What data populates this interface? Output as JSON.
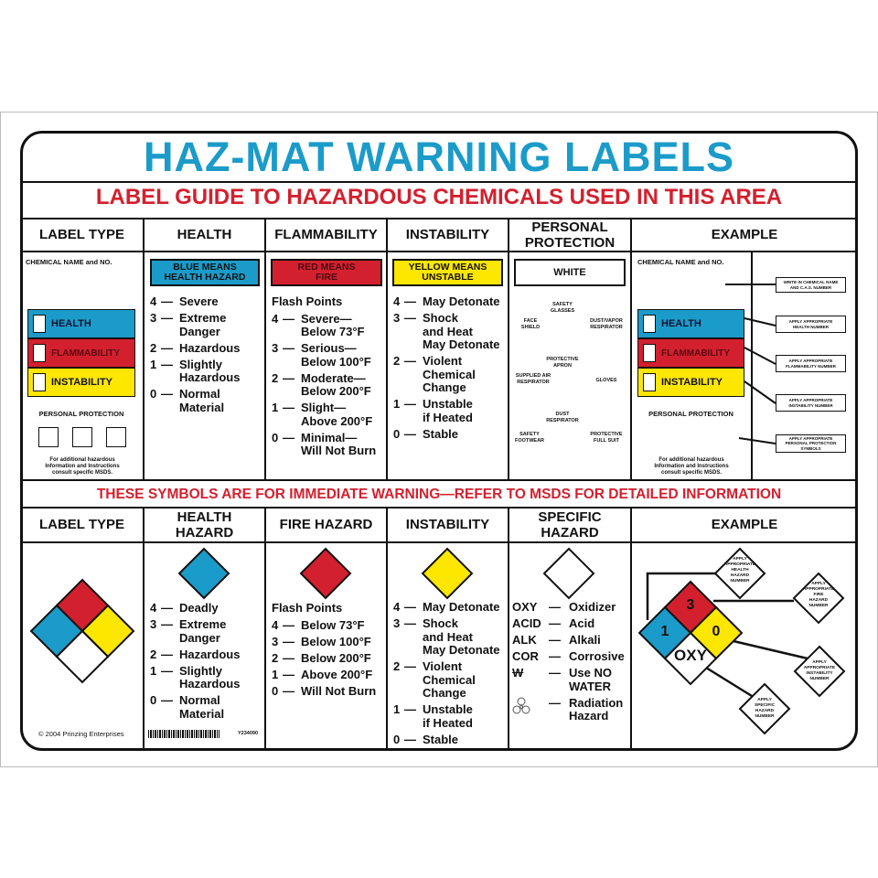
{
  "title": "HAZ-MAT WARNING LABELS",
  "subtitle": "LABEL GUIDE TO HAZARDOUS CHEMICALS USED IN THIS AREA",
  "warning": "THESE SYMBOLS ARE FOR IMMEDIATE WARNING—REFER TO MSDS FOR DETAILED INFORMATION",
  "colors": {
    "blue": "#1b9bc9",
    "red": "#d3202e",
    "yellow": "#fde600",
    "white": "#ffffff"
  },
  "top": {
    "headers": [
      "LABEL TYPE",
      "HEALTH",
      "FLAMMABILITY",
      "INSTABILITY",
      "PERSONAL\nPROTECTION",
      "EXAMPLE"
    ],
    "label_type": {
      "chemical_name": "CHEMICAL NAME and NO.",
      "bars": [
        "HEALTH",
        "FLAMMABILITY",
        "INSTABILITY"
      ],
      "personal_protection": "PERSONAL PROTECTION",
      "footnote": "For additional hazardous\nInformation and Instructions\nconsult specific MSDS."
    },
    "health": {
      "banner": "BLUE MEANS\nHEALTH HAZARD",
      "items": [
        [
          "4",
          "Severe"
        ],
        [
          "3",
          "Extreme\n   Danger"
        ],
        [
          "2",
          "Hazardous"
        ],
        [
          "1",
          "Slightly\n   Hazardous"
        ],
        [
          "0",
          "Normal\n   Material"
        ]
      ]
    },
    "flammability": {
      "banner": "RED MEANS\nFIRE",
      "heading": "Flash Points",
      "items": [
        [
          "4",
          "Severe—\nBelow 73°F"
        ],
        [
          "3",
          "Serious—\nBelow 100°F"
        ],
        [
          "2",
          "Moderate—\nBelow 200°F"
        ],
        [
          "1",
          "Slight—\nAbove 200°F"
        ],
        [
          "0",
          "Minimal—\nWill Not Burn"
        ]
      ]
    },
    "instability": {
      "banner": "YELLOW MEANS\nUNSTABLE",
      "items": [
        [
          "4",
          "May Detonate"
        ],
        [
          "3",
          "Shock\n   and Heat\nMay Detonate"
        ],
        [
          "2",
          "Violent\nChemical\nChange"
        ],
        [
          "1",
          "Unstable\n   if Heated"
        ],
        [
          "0",
          "Stable"
        ]
      ]
    },
    "personal_protection": {
      "banner": "WHITE",
      "items": [
        "SAFETY\nGLASSES",
        "FACE\nSHIELD",
        "DUST/VAPOR\nRESPIRATOR",
        "PROTECTIVE\nAPRON",
        "SUPPLIED AIR\nRESPIRATOR",
        "GLOVES",
        "DUST\nRESPIRATOR",
        "SAFETY\nFOOTWEAR",
        "PROTECTIVE\nFULL SUIT"
      ]
    },
    "example": {
      "chemical_name": "CHEMICAL NAME and NO.",
      "bars": [
        "HEALTH",
        "FLAMMABILITY",
        "INSTABILITY"
      ],
      "personal_protection": "PERSONAL PROTECTION",
      "footnote": "For additional hazardous\nInformation and Instructions\nconsult specific MSDS.",
      "callouts": [
        "WRITE IN CHEMICAL NAME\nAND C.A.S. NUMBER",
        "APPLY APPROPRIATE\nHEALTH NUMBER",
        "APPLY APPROPRIATE\nFLAMMABILITY NUMBER",
        "APPLY APPROPRIATE\nINSTABILITY NUMBER",
        "APPLY APPROPRIATE\nPERSONAL PROTECTION\nSYMBOLS"
      ]
    }
  },
  "bottom": {
    "headers": [
      "LABEL TYPE",
      "HEALTH\nHAZARD",
      "FIRE HAZARD",
      "INSTABILITY",
      "SPECIFIC\nHAZARD",
      "EXAMPLE"
    ],
    "health": {
      "items": [
        [
          "4",
          "Deadly"
        ],
        [
          "3",
          "Extreme\n   Danger"
        ],
        [
          "2",
          "Hazardous"
        ],
        [
          "1",
          "Slightly\n   Hazardous"
        ],
        [
          "0",
          "Normal\n   Material"
        ]
      ]
    },
    "fire": {
      "heading": "Flash Points",
      "items": [
        [
          "4",
          "Below 73°F"
        ],
        [
          "3",
          "Below 100°F"
        ],
        [
          "2",
          "Below 200°F"
        ],
        [
          "1",
          "Above 200°F"
        ],
        [
          "0",
          "Will Not Burn"
        ]
      ]
    },
    "instability": {
      "items": [
        [
          "4",
          "May Detonate"
        ],
        [
          "3",
          "Shock\n   and Heat\nMay Detonate"
        ],
        [
          "2",
          "Violent\nChemical\nChange"
        ],
        [
          "1",
          "Unstable\n   if Heated"
        ],
        [
          "0",
          "Stable"
        ]
      ]
    },
    "specific": {
      "items": [
        [
          "OXY",
          "Oxidizer"
        ],
        [
          "ACID",
          "Acid"
        ],
        [
          "ALK",
          "Alkali"
        ],
        [
          "COR",
          "Corrosive"
        ],
        [
          "W",
          "Use NO\n  WATER"
        ],
        [
          "radiation-icon",
          "Radiation\n  Hazard"
        ]
      ]
    },
    "example": {
      "health_value": "1",
      "fire_value": "3",
      "instability_value": "0",
      "specific_value": "OXY",
      "callouts": [
        "APPLY\nAPPROPRIATE\nHEALTH\nHAZARD\nNUMBER",
        "APPLY\nAPPROPRIATE\nFIRE\nHAZARD\nNUMBER",
        "APPLY\nAPPROPRIATE\nINSTABILITY\nNUMBER",
        "APPLY\nSPECIFIC\nHAZARD\nNUMBER"
      ]
    },
    "copyright": "© 2004 Prinzing Enterprises",
    "product_code": "Y234090"
  }
}
